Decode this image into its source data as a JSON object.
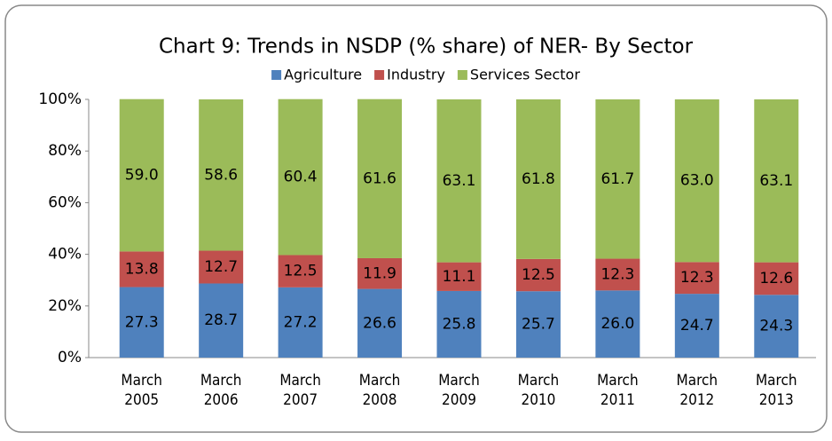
{
  "chart_data": {
    "type": "stacked_bar",
    "title": "Chart 9: Trends in NSDP (% share) of NER- By Sector",
    "categories": [
      "March 2005",
      "March 2006",
      "March 2007",
      "March 2008",
      "March 2009",
      "March 2010",
      "March 2011",
      "March 2012",
      "March 2013"
    ],
    "series": [
      {
        "name": "Agriculture",
        "color": "#4f81bd",
        "values": [
          27.3,
          28.7,
          27.2,
          26.6,
          25.8,
          25.7,
          26.0,
          24.7,
          24.3
        ],
        "value_labels": [
          "27.3",
          "28.7",
          "27.2",
          "26.6",
          "25.8",
          "25.7",
          "26.0",
          "24.7",
          "24.3"
        ]
      },
      {
        "name": "Industry",
        "color": "#c0504d",
        "values": [
          13.8,
          12.7,
          12.5,
          11.9,
          11.1,
          12.5,
          12.3,
          12.3,
          12.6
        ],
        "value_labels": [
          "13.8",
          "12.7",
          "12.5",
          "11.9",
          "11.1",
          "12.5",
          "12.3",
          "12.3",
          "12.6"
        ]
      },
      {
        "name": "Services Sector",
        "color": "#9bbb59",
        "values": [
          59.0,
          58.6,
          60.4,
          61.6,
          63.1,
          61.8,
          61.7,
          63.0,
          63.1
        ],
        "value_labels": [
          "59.0",
          "58.6",
          "60.4",
          "61.6",
          "63.1",
          "61.8",
          "61.7",
          "63.0",
          "63.1"
        ]
      }
    ],
    "ylim": [
      0,
      100
    ],
    "yticks": [
      {
        "value": 0,
        "label": "0%"
      },
      {
        "value": 20,
        "label": "20%"
      },
      {
        "value": 40,
        "label": "40%"
      },
      {
        "value": 60,
        "label": "60%"
      },
      {
        "value": 80,
        "label": "80%"
      },
      {
        "value": 100,
        "label": "100%"
      }
    ],
    "legend": "top"
  }
}
